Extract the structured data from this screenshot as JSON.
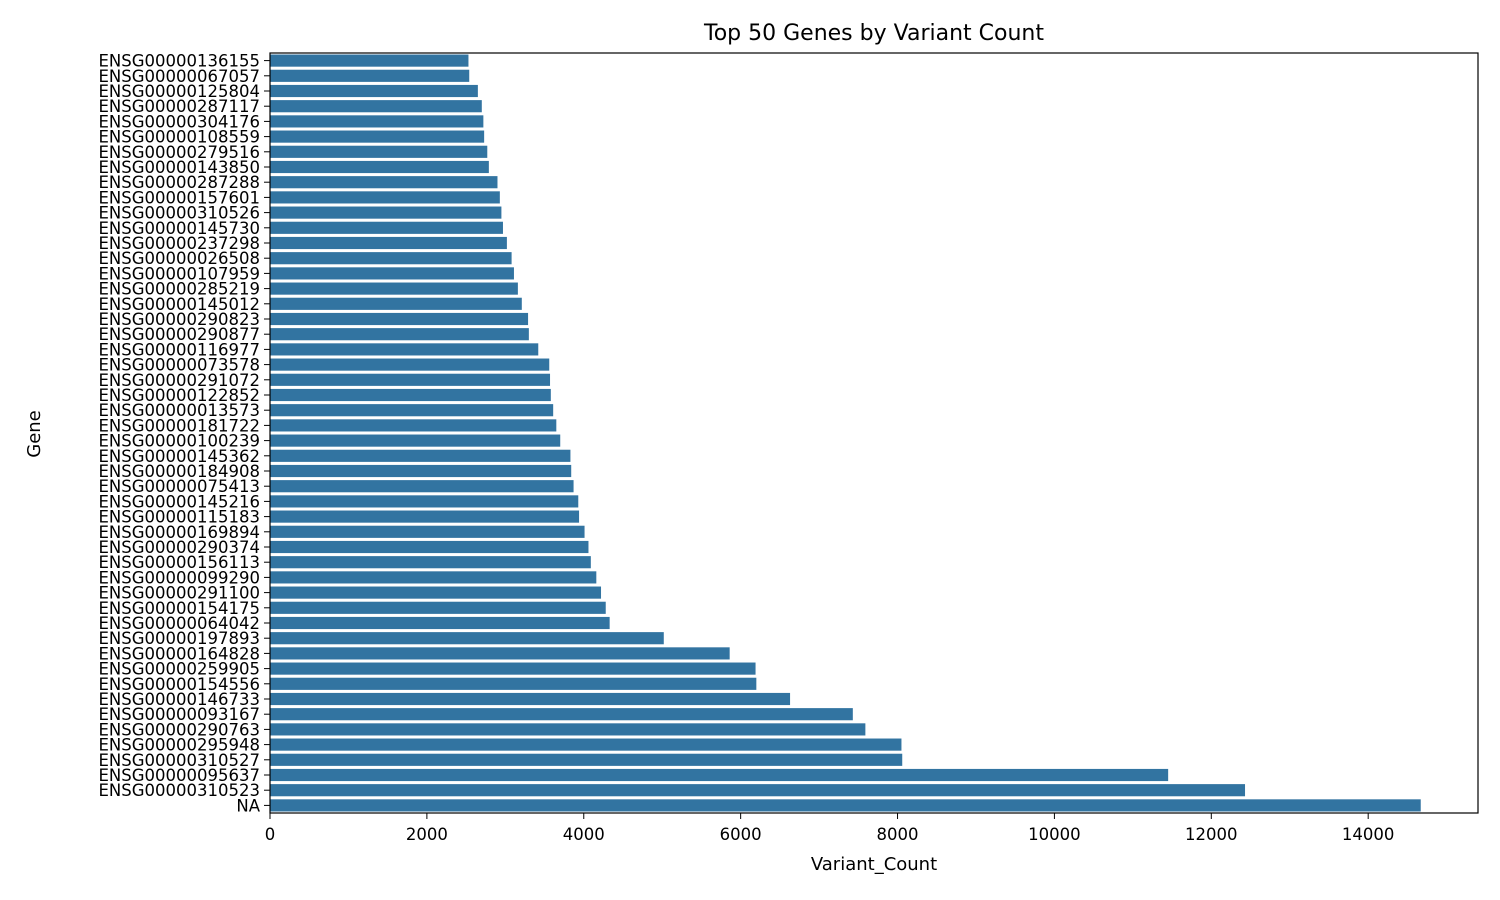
{
  "colors": {
    "bar": "#3274a1",
    "axis": "#000000",
    "background": "#ffffff"
  },
  "chart_data": {
    "type": "bar",
    "orientation": "horizontal",
    "title": "Top 50 Genes by Variant Count",
    "xlabel": "Variant_Count",
    "ylabel": "Gene",
    "xlim": [
      0,
      15400
    ],
    "xticks": [
      0,
      2000,
      4000,
      6000,
      8000,
      10000,
      12000,
      14000
    ],
    "grid": false,
    "legend": "none",
    "categories": [
      "ENSG00000136155",
      "ENSG00000067057",
      "ENSG00000125804",
      "ENSG00000287117",
      "ENSG00000304176",
      "ENSG00000108559",
      "ENSG00000279516",
      "ENSG00000143850",
      "ENSG00000287288",
      "ENSG00000157601",
      "ENSG00000310526",
      "ENSG00000145730",
      "ENSG00000237298",
      "ENSG00000026508",
      "ENSG00000107959",
      "ENSG00000285219",
      "ENSG00000145012",
      "ENSG00000290823",
      "ENSG00000290877",
      "ENSG00000116977",
      "ENSG00000073578",
      "ENSG00000291072",
      "ENSG00000122852",
      "ENSG00000013573",
      "ENSG00000181722",
      "ENSG00000100239",
      "ENSG00000145362",
      "ENSG00000184908",
      "ENSG00000075413",
      "ENSG00000145216",
      "ENSG00000115183",
      "ENSG00000169894",
      "ENSG00000290374",
      "ENSG00000156113",
      "ENSG00000099290",
      "ENSG00000291100",
      "ENSG00000154175",
      "ENSG00000064042",
      "ENSG00000197893",
      "ENSG00000164828",
      "ENSG00000259905",
      "ENSG00000154556",
      "ENSG00000146733",
      "ENSG00000093167",
      "ENSG00000290763",
      "ENSG00000295948",
      "ENSG00000310527",
      "ENSG00000095637",
      "ENSG00000310523",
      "NA"
    ],
    "values": [
      2530,
      2540,
      2650,
      2700,
      2720,
      2730,
      2770,
      2790,
      2900,
      2930,
      2950,
      2970,
      3020,
      3080,
      3110,
      3160,
      3210,
      3290,
      3300,
      3420,
      3560,
      3570,
      3580,
      3610,
      3650,
      3700,
      3830,
      3840,
      3870,
      3930,
      3940,
      4010,
      4060,
      4090,
      4160,
      4220,
      4280,
      4330,
      5020,
      5860,
      6190,
      6200,
      6630,
      7430,
      7590,
      8050,
      8060,
      11450,
      12430,
      14670
    ]
  }
}
